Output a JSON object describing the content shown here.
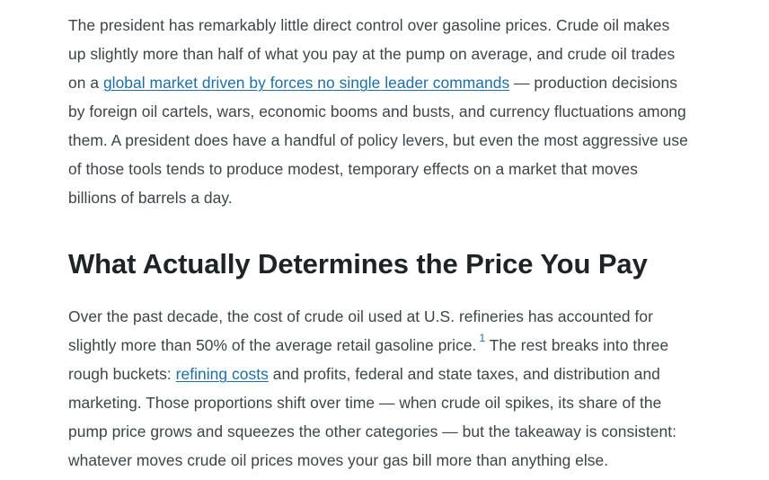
{
  "article": {
    "intro": {
      "line1": "The president has remarkably little direct control over gasoline prices. Crude oil makes",
      "line2": "up slightly more than half of what you pay at the pump on average, and crude oil trades",
      "line3_before": "on a ",
      "line3_link": "global market driven by forces no single leader commands",
      "line3_after": " — production decisions",
      "line4": "by foreign oil cartels, wars, economic booms and busts, and currency fluctuations among",
      "line5": "them. A president does have a handful of policy levers, but even the most aggressive use",
      "line6": "of those tools tends to produce modest, temporary effects on a market that moves",
      "line7": "billions of barrels a day."
    },
    "section_heading": "What Actually Determines the Price You Pay",
    "section_body": {
      "line1": "Over the past decade, the cost of crude oil used at U.S. refineries has accounted for",
      "line2_before": "slightly more than 50% of the average retail gasoline price.",
      "line2_footnote": "1",
      "line2_after": " The rest breaks into three",
      "line3_before": "rough buckets: ",
      "line3_link": "refining costs",
      "line3_after": " and profits, federal and state taxes, and distribution and",
      "line4": "marketing. Those proportions shift over time — when crude oil spikes, its share of the",
      "line5": "pump price grows and squeezes the other categories — but the takeaway is consistent:",
      "line6": "whatever moves crude oil prices moves your gas bill more than anything else."
    }
  },
  "colors": {
    "text": "#3d4448",
    "heading": "#1e2326",
    "link": "#1b6fa6",
    "background": "#ffffff"
  }
}
